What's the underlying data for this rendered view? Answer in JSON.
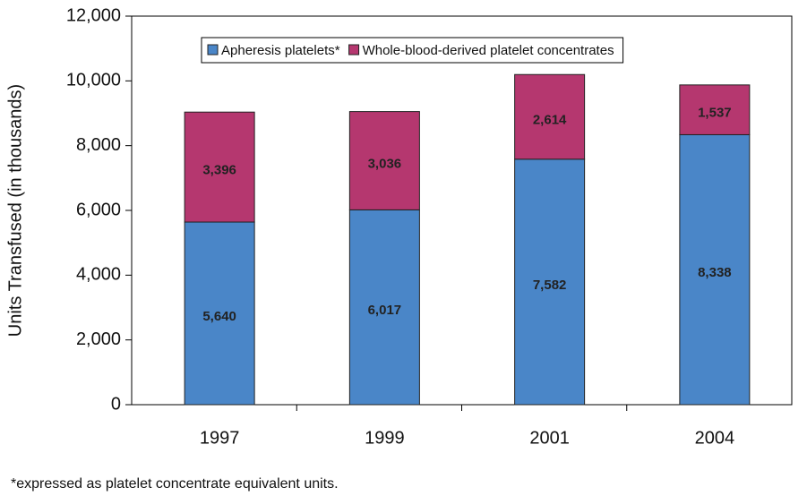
{
  "chart_data": {
    "type": "stacked_bar",
    "y_label": "Units Transfused (in thousands)",
    "footnote": "*expressed as platelet concentrate equivalent units.",
    "categories": [
      "1997",
      "1999",
      "2001",
      "2004"
    ],
    "series": [
      {
        "name": "Apheresis platelets*",
        "color": "#4a86c8",
        "values": [
          5640,
          6017,
          7582,
          8338
        ],
        "value_labels": [
          "5,640",
          "6,017",
          "7,582",
          "8,338"
        ]
      },
      {
        "name": "Whole-blood-derived platelet concentrates",
        "color": "#b5376f",
        "values": [
          3396,
          3036,
          2614,
          1537
        ],
        "value_labels": [
          "3,396",
          "3,036",
          "2,614",
          "1,537"
        ]
      }
    ],
    "ylim": [
      0,
      12000
    ],
    "yticks": [
      0,
      {
        "value": 2000,
        "label": "2,000"
      },
      {
        "value": 4000,
        "label": "4,000"
      },
      {
        "value": 6000,
        "label": "6,000"
      },
      {
        "value": 8000,
        "label": "8,000"
      },
      {
        "value": 10000,
        "label": "10,000"
      },
      {
        "value": 12000,
        "label": "12,000"
      }
    ],
    "legend": "top"
  }
}
